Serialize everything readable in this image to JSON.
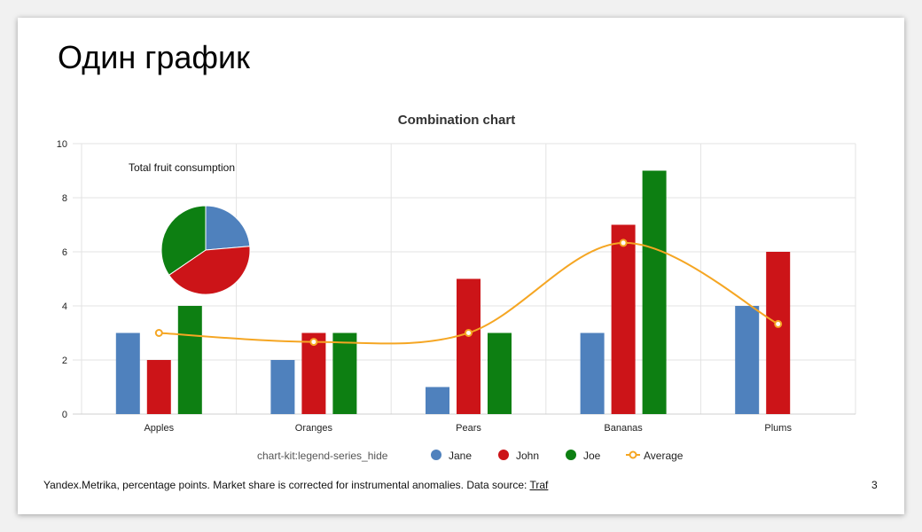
{
  "slide": {
    "title": "Один график",
    "footer_text": "Yandex.Metrika, percentage points. Market share is corrected for instrumental anomalies. Data source: ",
    "footer_link": "Traf",
    "page_number": "3"
  },
  "colors": {
    "jane": "#4f81bd",
    "john": "#cc1418",
    "joe": "#0d7f12",
    "average": "#f5a623"
  },
  "chart_data": [
    {
      "type": "bar",
      "title": "Combination chart",
      "categories": [
        "Apples",
        "Oranges",
        "Pears",
        "Bananas",
        "Plums"
      ],
      "ylim": [
        0,
        10
      ],
      "yticks": [
        0,
        2,
        4,
        6,
        8,
        10
      ],
      "grid": true,
      "legend_position": "bottom",
      "legend_prefix": "chart-kit:legend-series_hide",
      "series": [
        {
          "name": "Jane",
          "type": "bar",
          "color": "#4f81bd",
          "values": [
            3,
            2,
            1,
            3,
            4
          ]
        },
        {
          "name": "John",
          "type": "bar",
          "color": "#cc1418",
          "values": [
            2,
            3,
            5,
            7,
            6
          ]
        },
        {
          "name": "Joe",
          "type": "bar",
          "color": "#0d7f12",
          "values": [
            4,
            3,
            3,
            9,
            0
          ]
        },
        {
          "name": "Average",
          "type": "line",
          "color": "#f5a623",
          "values": [
            3,
            2.67,
            3,
            6.33,
            3.33
          ]
        }
      ]
    },
    {
      "type": "pie",
      "title": "Total fruit consumption",
      "labels": [
        "Jane",
        "John",
        "Joe"
      ],
      "values": [
        13,
        23,
        19
      ],
      "colors": [
        "#4f81bd",
        "#cc1418",
        "#0d7f12"
      ]
    }
  ]
}
